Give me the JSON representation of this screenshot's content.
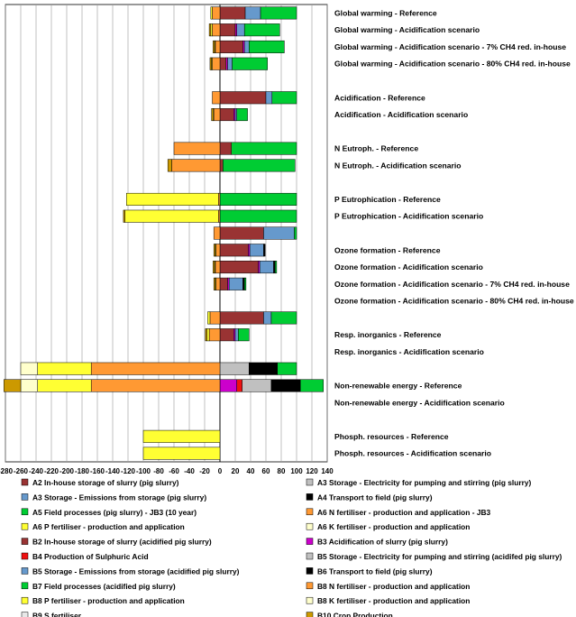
{
  "chart_data": {
    "type": "bar",
    "orientation": "horizontal",
    "stacked": true,
    "title": "",
    "xlabel": "",
    "ylabel": "",
    "xlim": [
      -280,
      140
    ],
    "x_ticks": [
      -280,
      -260,
      -240,
      -220,
      -200,
      -180,
      -160,
      -140,
      -120,
      -100,
      -80,
      -60,
      -40,
      -20,
      0,
      20,
      40,
      60,
      80,
      100,
      120,
      140
    ],
    "grid": "vertical",
    "legend_position": "bottom",
    "categories": [
      "Global warming - Reference",
      "Global warming - Acidification scenario",
      "Global warming - Acidification scenario - 7% CH4 red. in-house",
      "Global warming - Acidification scenario - 80% CH4 red. in-house",
      "",
      "Acidification - Reference",
      "Acidification - Acidification scenario",
      "",
      "N Eutroph. - Reference",
      "N Eutroph. - Acidification scenario",
      "",
      "P Eutrophication - Reference",
      "P Eutrophication - Acidification scenario",
      "",
      "Ozone formation - Reference",
      "Ozone formation - Acidification scenario",
      "Ozone formation - Acidification scenario - 7% CH4 red. in-house",
      "Ozone formation - Acidification scenario - 80% CH4 red. in-house",
      "",
      "Resp. inorganics - Reference",
      "Resp. inorganics - Acidification scenario",
      "",
      "Non-renewable energy - Reference",
      "Non-renewable energy - Acidification scenario",
      "",
      "Phosph. resources - Reference",
      "Phosph. resources - Acidification scenario"
    ],
    "series": [
      {
        "name": "A2 In-house storage of slurry (pig slurry)",
        "color": "#993333",
        "values": [
          33,
          0,
          0,
          0,
          0,
          60,
          0,
          0,
          15,
          0,
          0,
          0,
          0,
          57,
          0,
          0,
          0,
          0,
          57,
          0,
          0,
          0,
          0,
          0,
          0,
          0,
          0
        ]
      },
      {
        "name": "A3 Storage - Electricity for pumping and stirring (pig slurry)",
        "color": "#c0c0c0",
        "values": [
          0,
          0,
          0,
          0,
          0,
          0,
          0,
          0,
          0,
          0,
          0,
          0,
          0,
          0,
          0,
          0,
          0,
          0,
          0,
          0,
          0,
          38,
          0,
          0,
          0,
          0,
          0
        ]
      },
      {
        "name": "A3 Storage - Emissions from storage (pig slurry)",
        "color": "#6699cc",
        "values": [
          20,
          0,
          0,
          0,
          0,
          8,
          0,
          0,
          0,
          0,
          0,
          0,
          0,
          40,
          0,
          0,
          0,
          0,
          10,
          0,
          0,
          0,
          0,
          0,
          0,
          0,
          0
        ]
      },
      {
        "name": "A4 Transport to field (pig slurry)",
        "color": "#000000",
        "values": [
          0,
          0,
          0,
          0,
          0,
          0,
          0,
          0,
          0,
          0,
          0,
          0,
          0,
          0,
          0,
          0,
          0,
          0,
          0,
          0,
          0,
          37,
          0,
          0,
          0,
          0,
          0
        ]
      },
      {
        "name": "A5 Field processes (pig slurry) - JB3 (10 year)",
        "color": "#00cc33",
        "values": [
          47,
          0,
          0,
          0,
          0,
          32,
          0,
          0,
          85,
          0,
          0,
          100,
          0,
          3,
          0,
          0,
          0,
          0,
          33,
          0,
          0,
          25,
          0,
          0,
          0,
          0,
          0
        ]
      },
      {
        "name": "A6 N fertiliser - production and application - JB3",
        "color": "#ff9933",
        "values": [
          -10,
          0,
          0,
          0,
          0,
          -10,
          0,
          0,
          -60,
          0,
          0,
          -2,
          0,
          -8,
          0,
          0,
          0,
          0,
          -13,
          0,
          0,
          -168,
          0,
          0,
          0,
          0,
          0
        ]
      },
      {
        "name": "A6 P fertiliser - production and application",
        "color": "#ffff33",
        "values": [
          -2,
          0,
          0,
          0,
          0,
          0,
          0,
          0,
          0,
          0,
          0,
          -120,
          0,
          0,
          0,
          0,
          0,
          0,
          -3,
          0,
          0,
          -70,
          0,
          0,
          0,
          -100,
          0
        ]
      },
      {
        "name": "A6 K fertiliser - production and application",
        "color": "#ffffcc",
        "values": [
          0,
          0,
          0,
          0,
          0,
          0,
          0,
          0,
          0,
          0,
          0,
          0,
          0,
          0,
          0,
          0,
          0,
          0,
          0,
          0,
          0,
          -22,
          0,
          0,
          0,
          0,
          0
        ]
      },
      {
        "name": "B2 In-house storage of slurry (acidified pig slurry)",
        "color": "#993333",
        "values": [
          0,
          20,
          30,
          8,
          0,
          0,
          18,
          0,
          0,
          4,
          0,
          0,
          0,
          0,
          37,
          50,
          10,
          0,
          0,
          18,
          0,
          0,
          0,
          0,
          0,
          0,
          0
        ]
      },
      {
        "name": "B3 Acidification of slurry (pig slurry)",
        "color": "#cc00cc",
        "values": [
          0,
          2,
          2,
          2,
          0,
          0,
          2,
          0,
          0,
          0,
          0,
          0,
          0,
          0,
          2,
          2,
          2,
          0,
          0,
          2,
          0,
          0,
          22,
          0,
          0,
          0,
          0
        ]
      },
      {
        "name": "B4 Production of Sulphuric Acid",
        "color": "#ee1111",
        "values": [
          0,
          0,
          0,
          0,
          0,
          0,
          0,
          0,
          0,
          0,
          0,
          0,
          0,
          0,
          0,
          0,
          0,
          0,
          0,
          0,
          0,
          0,
          7,
          0,
          0,
          0,
          0
        ]
      },
      {
        "name": "B5 Storage - Electricity for pumping and stirring (acidifed pig slurry)",
        "color": "#c0c0c0",
        "values": [
          0,
          0,
          0,
          0,
          0,
          0,
          0,
          0,
          0,
          0,
          0,
          0,
          0,
          0,
          0,
          0,
          0,
          0,
          0,
          0,
          0,
          0,
          38,
          0,
          0,
          0,
          0
        ]
      },
      {
        "name": "B5 Storage - Emissions from storage (acidified pig slurry)",
        "color": "#6699cc",
        "values": [
          0,
          10,
          6,
          6,
          0,
          0,
          2,
          0,
          0,
          0,
          0,
          0,
          0,
          0,
          18,
          18,
          18,
          0,
          0,
          4,
          0,
          0,
          0,
          0,
          0,
          0,
          0
        ]
      },
      {
        "name": "B6 Transport to field (pig slurry)",
        "color": "#000000",
        "values": [
          0,
          0,
          0,
          0,
          0,
          0,
          0,
          0,
          0,
          0,
          0,
          0,
          0,
          0,
          2,
          2,
          2,
          0,
          0,
          0,
          0,
          0,
          38,
          0,
          0,
          0,
          0
        ]
      },
      {
        "name": "B7 Field processes (acidified pig slurry)",
        "color": "#00cc33",
        "values": [
          0,
          46,
          46,
          46,
          0,
          0,
          14,
          0,
          0,
          94,
          0,
          0,
          100,
          0,
          0,
          2,
          2,
          0,
          0,
          14,
          0,
          0,
          30,
          0,
          0,
          0,
          0
        ]
      },
      {
        "name": "B8 N fertiliser - production and application",
        "color": "#ff9933",
        "values": [
          0,
          -10,
          -6,
          -10,
          0,
          0,
          -8,
          0,
          0,
          -63,
          0,
          0,
          -2,
          0,
          -5,
          -6,
          -5,
          0,
          0,
          -14,
          0,
          0,
          -168,
          0,
          0,
          0,
          0
        ]
      },
      {
        "name": "B8 P fertiliser - production and application",
        "color": "#ffff33",
        "values": [
          0,
          -2,
          -1,
          -1,
          0,
          0,
          -1,
          0,
          0,
          0,
          0,
          0,
          -122,
          0,
          -1,
          -1,
          -1,
          0,
          0,
          -3,
          0,
          0,
          -70,
          0,
          0,
          0,
          -100
        ]
      },
      {
        "name": "B8 K fertiliser - production and application",
        "color": "#ffffcc",
        "values": [
          0,
          0,
          0,
          0,
          0,
          0,
          0,
          0,
          0,
          0,
          0,
          0,
          0,
          0,
          0,
          0,
          0,
          0,
          0,
          0,
          0,
          0,
          -22,
          0,
          0,
          0,
          0
        ]
      },
      {
        "name": "B9 S fertiliser",
        "color": "#e8e8e8",
        "values": [
          0,
          0,
          0,
          0,
          0,
          0,
          0,
          0,
          0,
          0,
          0,
          0,
          0,
          0,
          0,
          0,
          0,
          0,
          0,
          0,
          0,
          0,
          0,
          0,
          0,
          0,
          0
        ]
      },
      {
        "name": "B10 Crop Production",
        "color": "#cc9900",
        "values": [
          0,
          -2,
          -2,
          -2,
          0,
          0,
          -2,
          0,
          0,
          -5,
          0,
          0,
          -2,
          0,
          -2,
          -2,
          -2,
          0,
          0,
          -2,
          0,
          0,
          -22,
          0,
          0,
          0,
          0
        ]
      }
    ],
    "legend": [
      {
        "label": "A2 In-house storage of slurry (pig slurry)",
        "color": "#993333"
      },
      {
        "label": "A3 Storage - Electricity for pumping and stirring (pig slurry)",
        "color": "#c0c0c0"
      },
      {
        "label": "A3 Storage - Emissions from storage (pig slurry)",
        "color": "#6699cc"
      },
      {
        "label": "A4 Transport to field (pig slurry)",
        "color": "#000000"
      },
      {
        "label": "A5 Field processes (pig slurry) - JB3 (10 year)",
        "color": "#00cc33"
      },
      {
        "label": "A6 N fertiliser - production and application - JB3",
        "color": "#ff9933"
      },
      {
        "label": "A6 P fertiliser - production and application",
        "color": "#ffff33"
      },
      {
        "label": "A6 K fertiliser - production and application",
        "color": "#ffffcc"
      },
      {
        "label": "B2 In-house storage of slurry (acidified pig slurry)",
        "color": "#993333"
      },
      {
        "label": "B3 Acidification of slurry (pig slurry)",
        "color": "#cc00cc"
      },
      {
        "label": "B4 Production of Sulphuric Acid",
        "color": "#ee1111"
      },
      {
        "label": "B5 Storage - Electricity for pumping and stirring (acidifed pig slurry)",
        "color": "#c0c0c0"
      },
      {
        "label": "B5 Storage - Emissions from storage (acidified pig slurry)",
        "color": "#6699cc"
      },
      {
        "label": "B6 Transport to field (pig slurry)",
        "color": "#000000"
      },
      {
        "label": "B7 Field processes (acidified pig slurry)",
        "color": "#00cc33"
      },
      {
        "label": "B8 N fertiliser - production and application",
        "color": "#ff9933"
      },
      {
        "label": "B8 P fertiliser - production and application",
        "color": "#ffff33"
      },
      {
        "label": "B8 K fertiliser - production and application",
        "color": "#ffffcc"
      },
      {
        "label": "B9 S fertiliser",
        "color": "#e8e8e8"
      },
      {
        "label": "B10 Crop Production",
        "color": "#cc9900"
      }
    ]
  }
}
